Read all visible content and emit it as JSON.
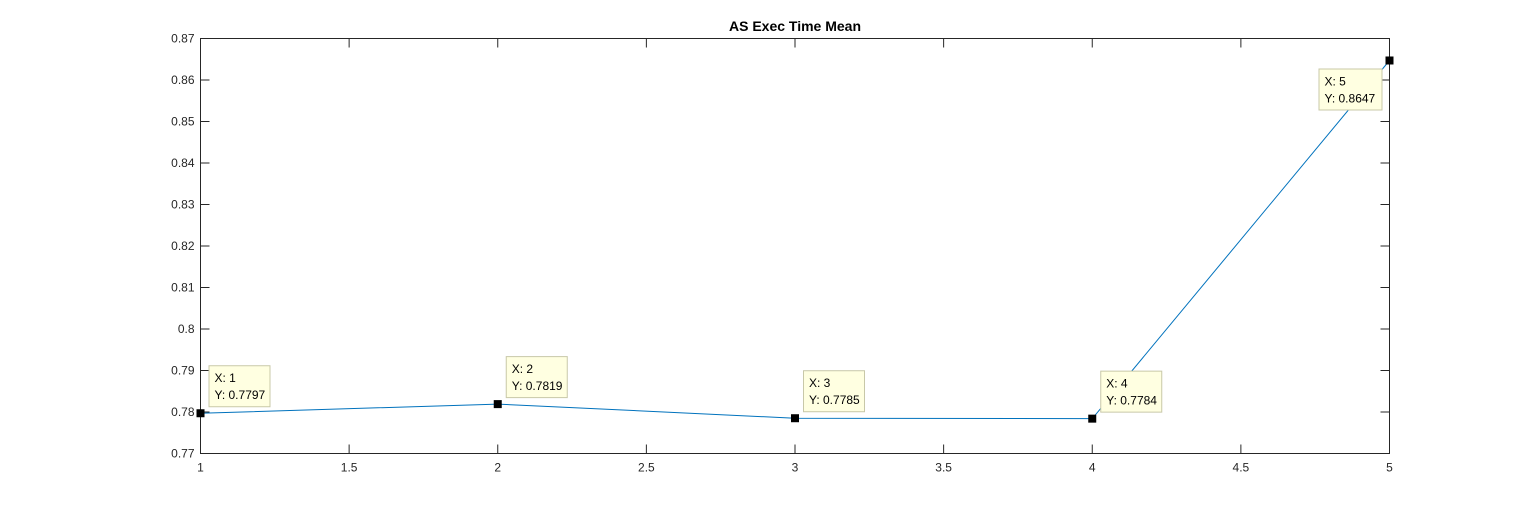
{
  "chart_data": {
    "type": "line",
    "title": "AS Exec Time Mean",
    "xlabel": "",
    "ylabel": "",
    "xlim": [
      1,
      5
    ],
    "ylim": [
      0.77,
      0.87
    ],
    "x": [
      1,
      2,
      3,
      4,
      5
    ],
    "series": [
      {
        "values": [
          0.7797,
          0.7819,
          0.7785,
          0.7784,
          0.8647
        ]
      }
    ],
    "xticks": [
      "1",
      "1.5",
      "2",
      "2.5",
      "3",
      "3.5",
      "4",
      "4.5",
      "5"
    ],
    "yticks": [
      "0.77",
      "0.78",
      "0.79",
      "0.8",
      "0.81",
      "0.82",
      "0.83",
      "0.84",
      "0.85",
      "0.86",
      "0.87"
    ],
    "xtick_values": [
      1,
      1.5,
      2,
      2.5,
      3,
      3.5,
      4,
      4.5,
      5
    ],
    "ytick_values": [
      0.77,
      0.78,
      0.79,
      0.8,
      0.81,
      0.82,
      0.83,
      0.84,
      0.85,
      0.86,
      0.87
    ],
    "datatips": [
      {
        "x_label": "X: 1",
        "y_label": "Y: 0.7797"
      },
      {
        "x_label": "X: 2",
        "y_label": "Y: 0.7819"
      },
      {
        "x_label": "X: 3",
        "y_label": "Y: 0.7785"
      },
      {
        "x_label": "X: 4",
        "y_label": "Y: 0.7784"
      },
      {
        "x_label": "X: 5",
        "y_label": "Y: 0.8647"
      }
    ],
    "grid": false,
    "legend": "none",
    "colors": {
      "line": "#0072BD",
      "marker": "#000000",
      "axis": "#262626",
      "datatip_bg": "#FFFFE1",
      "datatip_border": "#C8C8A8"
    }
  }
}
